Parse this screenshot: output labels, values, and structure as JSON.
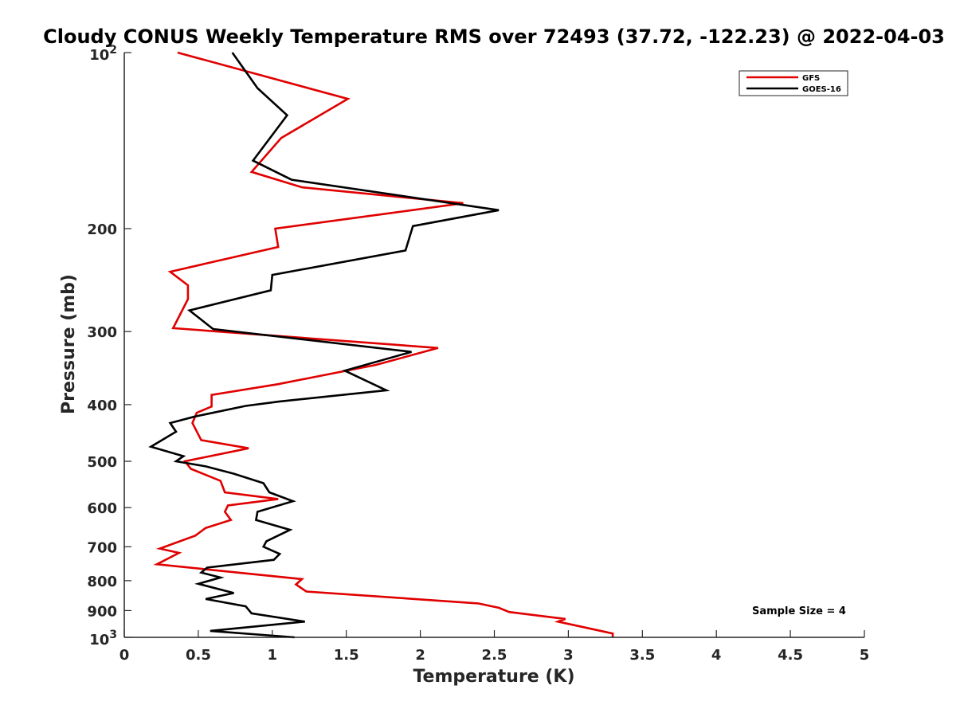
{
  "chart_data": {
    "type": "line",
    "title": "Cloudy CONUS Weekly Temperature RMS over 72493 (37.72, -122.23) @ 2022-04-03",
    "xlabel": "Temperature (K)",
    "ylabel": "Pressure (mb)",
    "xlim": [
      0,
      5
    ],
    "ylim": [
      100,
      1000
    ],
    "y_scale": "log",
    "y_reversed": true,
    "x_ticks": [
      0,
      0.5,
      1,
      1.5,
      2,
      2.5,
      3,
      3.5,
      4,
      4.5,
      5
    ],
    "x_tick_labels": [
      "0",
      "0.5",
      "1",
      "1.5",
      "2",
      "2.5",
      "3",
      "3.5",
      "4",
      "4.5",
      "5"
    ],
    "y_ticks": [
      200,
      300,
      400,
      500,
      600,
      700,
      800,
      900
    ],
    "y_tick_labels": [
      "200",
      "300",
      "400",
      "500",
      "600",
      "700",
      "800",
      "900"
    ],
    "y_end_labels": [
      {
        "value": 100,
        "base": "10",
        "exp": "2"
      },
      {
        "value": 1000,
        "base": "10",
        "exp": "3"
      }
    ],
    "grid": false,
    "legend_position": "top-right",
    "annotation": "Sample Size = 4",
    "series": [
      {
        "name": "GFS",
        "color": "#e00000",
        "points": [
          [
            0.36,
            100
          ],
          [
            1.51,
            120
          ],
          [
            1.06,
            140
          ],
          [
            0.86,
            160
          ],
          [
            1.2,
            170
          ],
          [
            2.29,
            181
          ],
          [
            1.02,
            200
          ],
          [
            1.04,
            215
          ],
          [
            0.31,
            237
          ],
          [
            0.43,
            250
          ],
          [
            0.43,
            264
          ],
          [
            0.33,
            296
          ],
          [
            2.12,
            320
          ],
          [
            1.7,
            342
          ],
          [
            1.04,
            369
          ],
          [
            0.59,
            385
          ],
          [
            0.59,
            403
          ],
          [
            0.49,
            413
          ],
          [
            0.46,
            430
          ],
          [
            0.52,
            460
          ],
          [
            0.84,
            475
          ],
          [
            0.41,
            500
          ],
          [
            0.45,
            515
          ],
          [
            0.65,
            540
          ],
          [
            0.68,
            565
          ],
          [
            1.04,
            580
          ],
          [
            0.7,
            595
          ],
          [
            0.68,
            610
          ],
          [
            0.72,
            630
          ],
          [
            0.55,
            650
          ],
          [
            0.48,
            670
          ],
          [
            0.24,
            705
          ],
          [
            0.37,
            717
          ],
          [
            0.22,
            750
          ],
          [
            1.2,
            795
          ],
          [
            1.16,
            812
          ],
          [
            1.23,
            835
          ],
          [
            2.39,
            875
          ],
          [
            2.53,
            890
          ],
          [
            2.6,
            905
          ],
          [
            2.98,
            930
          ],
          [
            2.93,
            940
          ],
          [
            3.3,
            985
          ],
          [
            3.3,
            1000
          ]
        ]
      },
      {
        "name": "GOES-16",
        "color": "#000000",
        "points": [
          [
            0.73,
            100
          ],
          [
            0.9,
            115
          ],
          [
            1.1,
            128
          ],
          [
            0.87,
            153
          ],
          [
            1.13,
            165
          ],
          [
            2.53,
            186
          ],
          [
            1.95,
            198
          ],
          [
            1.9,
            218
          ],
          [
            1.0,
            240
          ],
          [
            0.99,
            255
          ],
          [
            0.44,
            276
          ],
          [
            0.6,
            297
          ],
          [
            1.94,
            325
          ],
          [
            1.49,
            350
          ],
          [
            1.77,
            378
          ],
          [
            1.05,
            395
          ],
          [
            0.82,
            402
          ],
          [
            0.48,
            419
          ],
          [
            0.31,
            430
          ],
          [
            0.35,
            445
          ],
          [
            0.18,
            472
          ],
          [
            0.4,
            490
          ],
          [
            0.35,
            500
          ],
          [
            0.55,
            510
          ],
          [
            0.74,
            525
          ],
          [
            0.94,
            545
          ],
          [
            0.98,
            565
          ],
          [
            1.14,
            585
          ],
          [
            0.9,
            610
          ],
          [
            0.89,
            630
          ],
          [
            1.12,
            655
          ],
          [
            0.96,
            685
          ],
          [
            0.94,
            700
          ],
          [
            1.05,
            720
          ],
          [
            1.01,
            737
          ],
          [
            0.56,
            760
          ],
          [
            0.52,
            775
          ],
          [
            0.65,
            790
          ],
          [
            0.5,
            810
          ],
          [
            0.74,
            840
          ],
          [
            0.55,
            860
          ],
          [
            0.82,
            885
          ],
          [
            0.86,
            910
          ],
          [
            1.22,
            940
          ],
          [
            0.58,
            975
          ],
          [
            1.15,
            1000
          ]
        ]
      }
    ]
  }
}
